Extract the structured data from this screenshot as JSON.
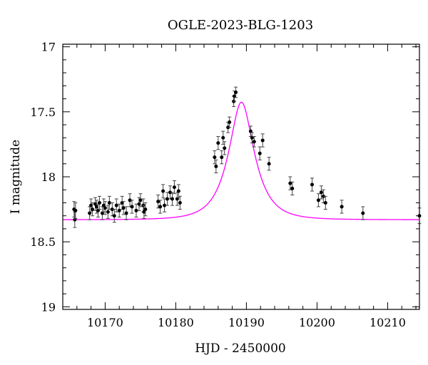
{
  "chart_data": {
    "type": "scatter",
    "title": "OGLE-2023-BLG-1203",
    "xlabel": "HJD - 2450000",
    "ylabel": "I magnitude",
    "xlim": [
      10164,
      10214.5
    ],
    "ylim": [
      19.02,
      16.98
    ],
    "y_inverted": true,
    "x_ticks": [
      10170,
      10180,
      10190,
      10200,
      10210
    ],
    "y_ticks": [
      17,
      17.5,
      18,
      18.5,
      19
    ],
    "x_tick_labels": [
      "10170",
      "10180",
      "10190",
      "10200",
      "10210"
    ],
    "y_tick_labels": [
      "17",
      "17.5",
      "18",
      "18.5",
      "19"
    ],
    "grid": false,
    "colors": {
      "points": "#000000",
      "errorbars": "#444444",
      "model": "#ff00ff"
    },
    "series": [
      {
        "type": "scatter_errorbar",
        "x": [
          10165.6,
          10165.7,
          10165.8,
          10167.8,
          10168.0,
          10168.2,
          10168.6,
          10168.8,
          10169.0,
          10169.2,
          10169.6,
          10169.8,
          10170.0,
          10170.4,
          10170.6,
          10171.0,
          10171.3,
          10171.6,
          10172.0,
          10172.4,
          10172.6,
          10173.0,
          10173.5,
          10173.8,
          10174.4,
          10174.8,
          10175.0,
          10175.4,
          10175.5,
          10175.7,
          10177.5,
          10177.8,
          10178.2,
          10178.4,
          10178.8,
          10179.2,
          10179.5,
          10179.8,
          10180.2,
          10180.4,
          10180.6,
          10185.5,
          10185.7,
          10186.0,
          10186.5,
          10186.7,
          10186.9,
          10187.4,
          10187.6,
          10188.2,
          10188.3,
          10188.5,
          10190.6,
          10190.8,
          10191.1,
          10191.9,
          10192.3,
          10193.2,
          10196.2,
          10196.5,
          10199.3,
          10200.2,
          10200.6,
          10200.9,
          10201.2,
          10203.5,
          10206.5,
          10214.5
        ],
        "y": [
          18.25,
          18.33,
          18.26,
          18.28,
          18.22,
          18.25,
          18.21,
          18.23,
          18.26,
          18.2,
          18.28,
          18.22,
          18.24,
          18.27,
          18.2,
          18.25,
          18.3,
          18.22,
          18.26,
          18.2,
          18.24,
          18.28,
          18.18,
          18.23,
          18.26,
          18.21,
          18.18,
          18.22,
          18.27,
          18.25,
          18.19,
          18.23,
          18.11,
          18.22,
          18.17,
          18.12,
          18.17,
          18.08,
          18.17,
          18.11,
          18.2,
          17.85,
          17.92,
          17.74,
          17.85,
          17.7,
          17.78,
          17.62,
          17.58,
          17.42,
          17.38,
          17.35,
          17.65,
          17.7,
          17.73,
          17.82,
          17.72,
          17.9,
          18.05,
          18.09,
          18.06,
          18.18,
          18.12,
          18.15,
          18.2,
          18.23,
          18.28,
          18.3
        ],
        "yerr": [
          0.06,
          0.06,
          0.06,
          0.05,
          0.05,
          0.05,
          0.05,
          0.05,
          0.05,
          0.05,
          0.05,
          0.05,
          0.05,
          0.05,
          0.05,
          0.05,
          0.05,
          0.05,
          0.05,
          0.05,
          0.05,
          0.05,
          0.05,
          0.05,
          0.05,
          0.05,
          0.05,
          0.05,
          0.05,
          0.05,
          0.05,
          0.05,
          0.05,
          0.05,
          0.05,
          0.05,
          0.05,
          0.05,
          0.05,
          0.05,
          0.05,
          0.05,
          0.05,
          0.05,
          0.05,
          0.05,
          0.05,
          0.04,
          0.04,
          0.04,
          0.04,
          0.04,
          0.04,
          0.04,
          0.04,
          0.05,
          0.05,
          0.05,
          0.05,
          0.05,
          0.05,
          0.05,
          0.05,
          0.05,
          0.05,
          0.05,
          0.05,
          0.06
        ]
      },
      {
        "type": "model_line",
        "t0": 10189.3,
        "u0": 0.47,
        "tE": 3.2,
        "baseline": 18.33
      }
    ]
  }
}
